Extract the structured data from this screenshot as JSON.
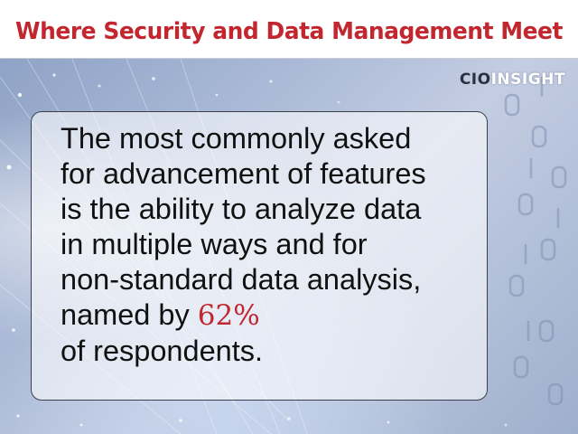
{
  "header": {
    "title": "Where Security and Data Management Meet"
  },
  "logo": {
    "part1": "CIO",
    "part2": "INSIGHT"
  },
  "callout": {
    "lines": [
      "The most commonly asked",
      "for advancement of features",
      "is the ability to analyze data",
      "in multiple ways and for",
      "non-standard data analysis,"
    ],
    "lead_in": "named by",
    "stat": "62%",
    "tail": "of respondents."
  },
  "colors": {
    "accent_red": "#c2262e",
    "background_blue": "#a9b8d6"
  },
  "background_motif": "fiber-optic-strands-and-binary-glyphs"
}
